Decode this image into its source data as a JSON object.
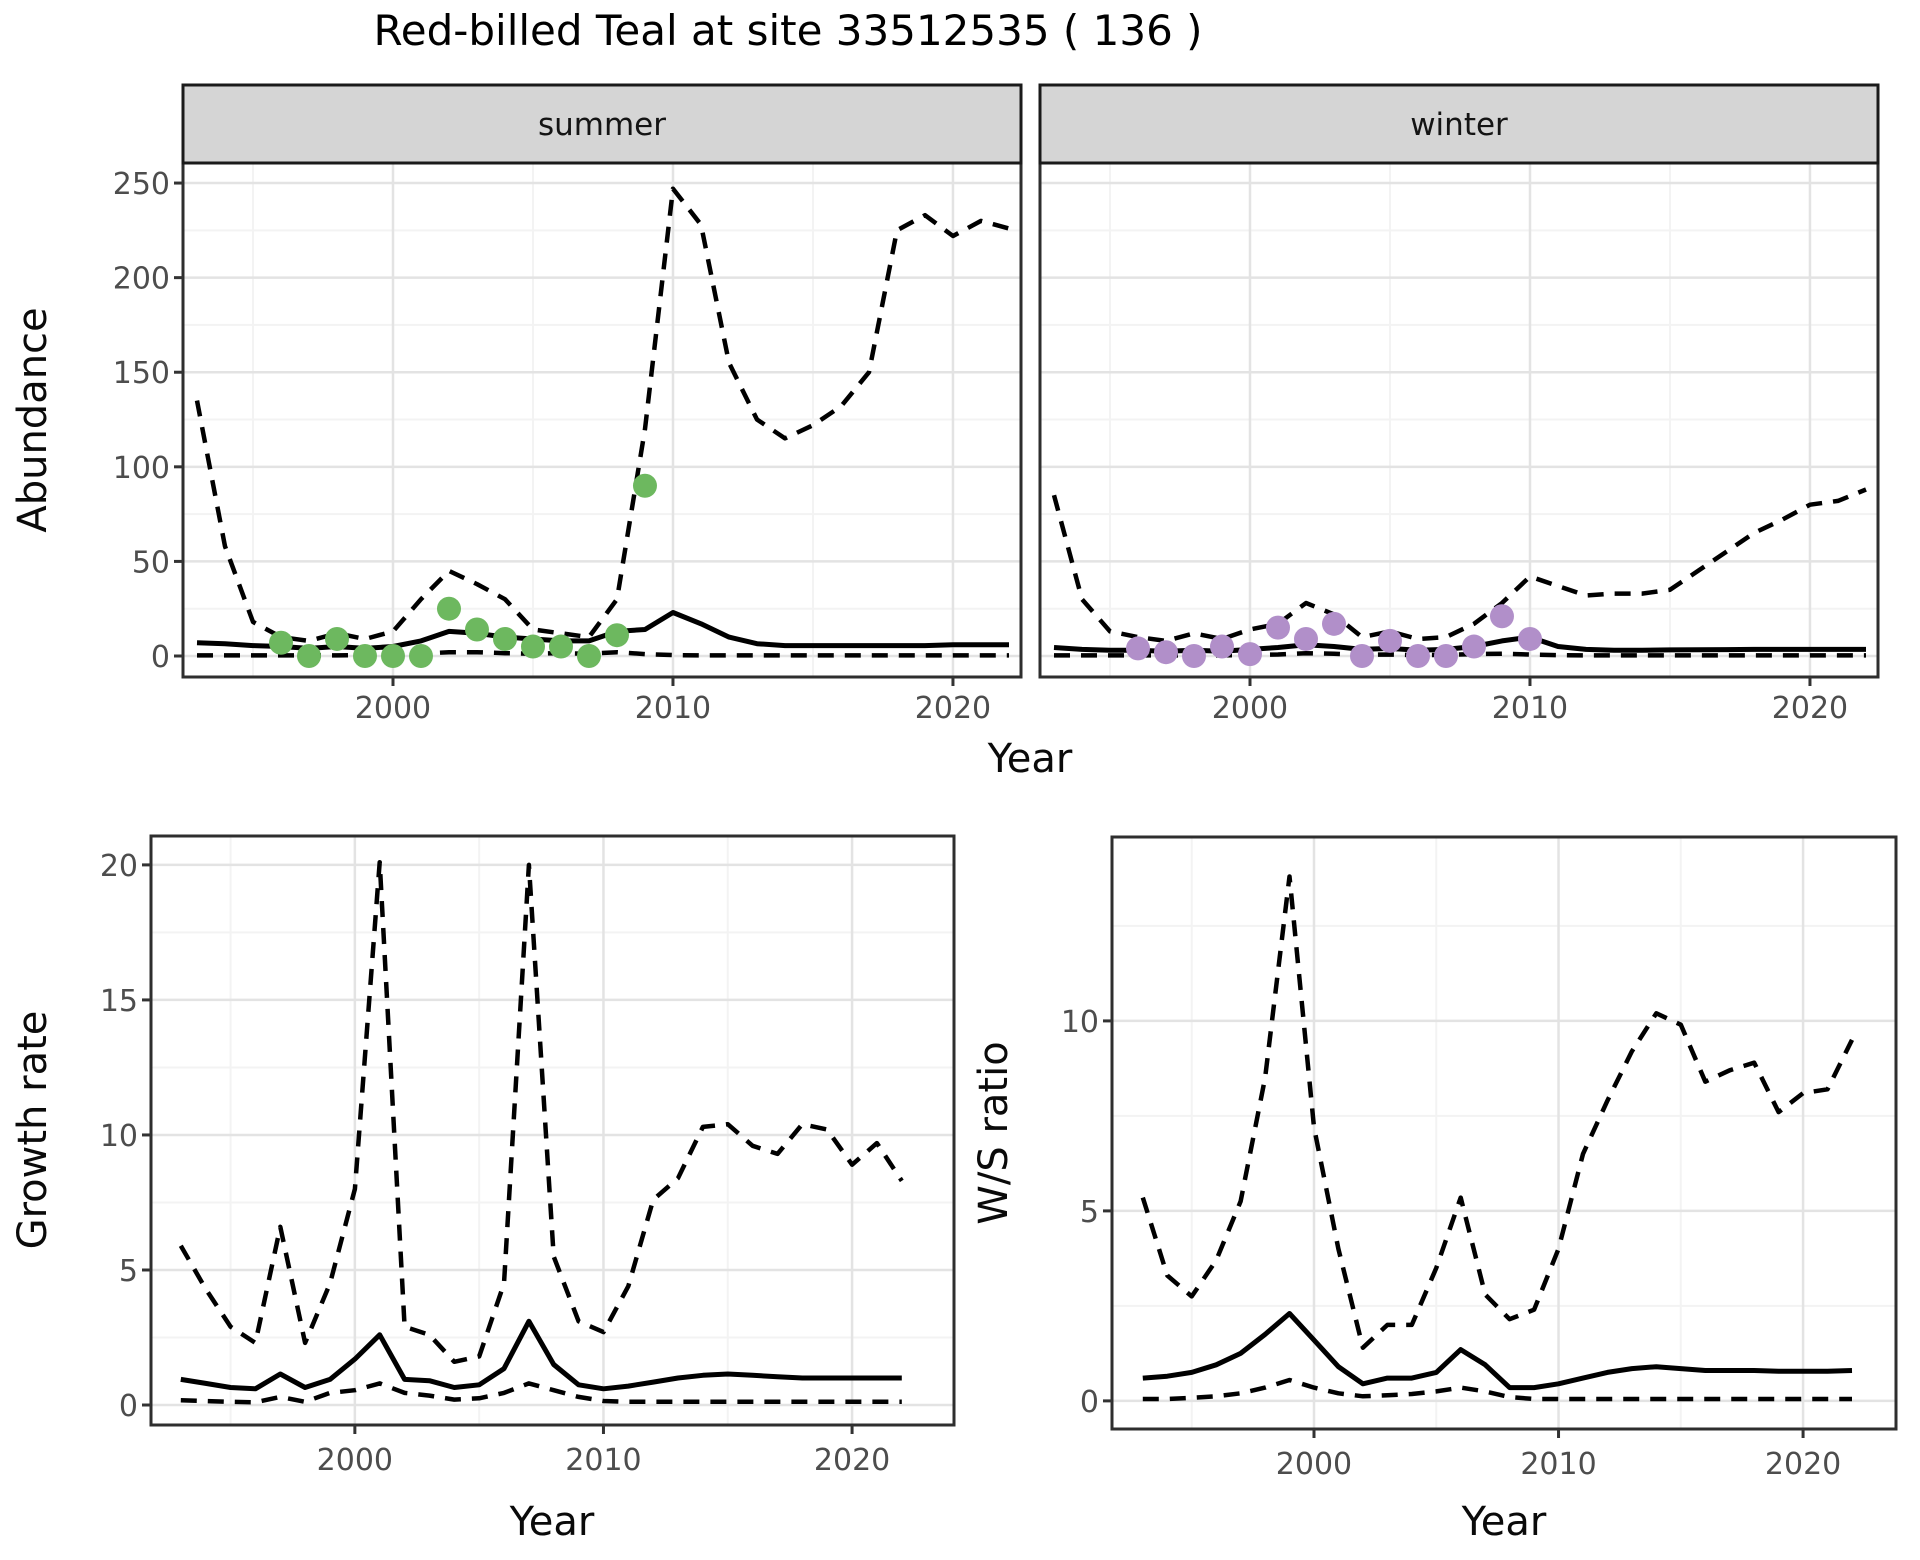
{
  "title": "Red-billed Teal at site 33512535 ( 136 )",
  "facets": [
    "summer",
    "winter"
  ],
  "colors": {
    "summer_points": "#6db85f",
    "winter_points": "#b18fc9",
    "line": "#000000",
    "grid_major": "#e3e3e3",
    "grid_minor": "#f3f3f3",
    "strip_fill": "#d5d5d5",
    "strip_border": "#1a1a1a",
    "panel_border": "#2e2e2e",
    "tick_text": "#4d4d4d",
    "axis_text": "#0a0a0a"
  },
  "chart_data": [
    {
      "type": "line",
      "facet": "summer",
      "strip_label": "summer",
      "xlabel": "Year",
      "ylabel": "Abundance",
      "xlim": [
        1992.5,
        2022.43
      ],
      "ylim": [
        -11.1,
        260.6
      ],
      "xticks": [
        2000,
        2010,
        2020
      ],
      "yticks": [
        0,
        50,
        100,
        150,
        200,
        250
      ],
      "x_minor": [
        1995,
        2005,
        2015
      ],
      "y_minor": [
        25,
        75,
        125,
        175,
        225
      ],
      "x": [
        1993,
        1994,
        1995,
        1996,
        1997,
        1998,
        1999,
        2000,
        2001,
        2002,
        2003,
        2004,
        2005,
        2006,
        2007,
        2008,
        2009,
        2010,
        2011,
        2012,
        2013,
        2014,
        2015,
        2016,
        2017,
        2018,
        2019,
        2020,
        2021,
        2022
      ],
      "series": [
        {
          "name": "upper_ci",
          "style": "dashed",
          "values": [
            135,
            58,
            18,
            10,
            8,
            12,
            9,
            13,
            30,
            45,
            38,
            30,
            14,
            12,
            10,
            30,
            120,
            247,
            228,
            155,
            125,
            115,
            122,
            132,
            150,
            225,
            233,
            222,
            230,
            226
          ]
        },
        {
          "name": "estimate",
          "style": "solid",
          "values": [
            7,
            6.5,
            5.5,
            5,
            4,
            5,
            4,
            5,
            8,
            13,
            12,
            10,
            9,
            8,
            8,
            13,
            14,
            23,
            17,
            10,
            6.5,
            5.5,
            5.5,
            5.5,
            5.5,
            5.5,
            5.5,
            6,
            6,
            6
          ]
        },
        {
          "name": "lower_ci",
          "style": "dashed",
          "values": [
            0.3,
            0.3,
            0.3,
            0.3,
            0.3,
            0.3,
            0.5,
            0.8,
            1.2,
            2,
            2,
            1.5,
            1.2,
            1.5,
            1.2,
            2,
            1,
            0.5,
            0.3,
            0.3,
            0.3,
            0.3,
            0.3,
            0.3,
            0.3,
            0.3,
            0.3,
            0.3,
            0.3,
            0.3
          ]
        }
      ],
      "points": {
        "name": "observed_counts",
        "color": "#6db85f",
        "x": [
          1996,
          1997,
          1998,
          1999,
          2000,
          2001,
          2002,
          2003,
          2004,
          2005,
          2006,
          2007,
          2008,
          2009
        ],
        "y": [
          7,
          0,
          9,
          0,
          0,
          0,
          25,
          14,
          9,
          5,
          5,
          0,
          11,
          90
        ]
      }
    },
    {
      "type": "line",
      "facet": "winter",
      "strip_label": "winter",
      "xlabel": "Year",
      "ylabel": "Abundance",
      "xlim": [
        1992.5,
        2022.43
      ],
      "ylim": [
        -11.1,
        260.6
      ],
      "xticks": [
        2000,
        2010,
        2020
      ],
      "yticks": [
        0,
        50,
        100,
        150,
        200,
        250
      ],
      "x_minor": [
        1995,
        2005,
        2015
      ],
      "y_minor": [
        25,
        75,
        125,
        175,
        225
      ],
      "x": [
        1993,
        1994,
        1995,
        1996,
        1997,
        1998,
        1999,
        2000,
        2001,
        2002,
        2003,
        2004,
        2005,
        2006,
        2007,
        2008,
        2009,
        2010,
        2011,
        2012,
        2013,
        2014,
        2015,
        2016,
        2017,
        2018,
        2019,
        2020,
        2021,
        2022
      ],
      "series": [
        {
          "name": "upper_ci",
          "style": "dashed",
          "values": [
            85,
            30,
            13,
            10,
            8,
            12,
            9,
            14,
            17,
            28,
            22,
            10,
            13,
            9,
            10,
            17,
            28,
            42,
            37,
            32,
            33,
            33,
            35,
            45,
            55,
            65,
            72,
            80,
            82,
            88
          ]
        },
        {
          "name": "estimate",
          "style": "solid",
          "values": [
            4.5,
            3.5,
            3,
            3,
            2.5,
            3,
            2.5,
            3.5,
            4.5,
            6,
            5,
            3.5,
            4,
            3,
            3.5,
            5,
            8,
            10,
            5,
            3.5,
            3,
            3,
            3.2,
            3.3,
            3.4,
            3.5,
            3.5,
            3.5,
            3.5,
            3.5
          ]
        },
        {
          "name": "lower_ci",
          "style": "dashed",
          "values": [
            0.3,
            0.3,
            0.3,
            0.3,
            0.3,
            0.3,
            0.3,
            0.5,
            0.8,
            1.5,
            1.2,
            0.6,
            0.8,
            0.5,
            0.6,
            1,
            1.2,
            0.8,
            0.4,
            0.3,
            0.3,
            0.3,
            0.3,
            0.3,
            0.3,
            0.3,
            0.3,
            0.3,
            0.3,
            0.3
          ]
        }
      ],
      "points": {
        "name": "observed_counts",
        "color": "#b18fc9",
        "x": [
          1996,
          1997,
          1998,
          1999,
          2000,
          2001,
          2002,
          2003,
          2004,
          2005,
          2006,
          2007,
          2008,
          2009,
          2010
        ],
        "y": [
          4,
          2,
          0,
          5,
          1,
          15,
          9,
          17,
          0,
          8,
          0,
          0,
          5,
          21,
          9
        ]
      }
    },
    {
      "type": "line",
      "facet": null,
      "strip_label": null,
      "xlabel": "Year",
      "ylabel": "Growth rate",
      "xlim": [
        1991.8,
        2024.1
      ],
      "ylim": [
        -0.74,
        21.07
      ],
      "xticks": [
        2000,
        2010,
        2020
      ],
      "yticks": [
        0,
        5,
        10,
        15,
        20
      ],
      "x_minor": [
        1995,
        2005,
        2015
      ],
      "y_minor": [
        2.5,
        7.5,
        12.5,
        17.5
      ],
      "x": [
        1993,
        1994,
        1995,
        1996,
        1997,
        1998,
        1999,
        2000,
        2001,
        2002,
        2003,
        2004,
        2005,
        2006,
        2007,
        2008,
        2009,
        2010,
        2011,
        2012,
        2013,
        2014,
        2015,
        2016,
        2017,
        2018,
        2019,
        2020,
        2021,
        2022
      ],
      "series": [
        {
          "name": "upper_ci",
          "style": "dashed",
          "values": [
            5.9,
            4.3,
            2.9,
            2.3,
            6.6,
            2.3,
            4.5,
            8,
            20.1,
            2.9,
            2.6,
            1.6,
            1.8,
            4.5,
            20,
            5.5,
            3.1,
            2.7,
            4.4,
            7.6,
            8.4,
            10.3,
            10.4,
            9.6,
            9.3,
            10.4,
            10.2,
            8.9,
            9.7,
            8.3
          ]
        },
        {
          "name": "estimate",
          "style": "solid",
          "values": [
            0.95,
            0.8,
            0.65,
            0.6,
            1.15,
            0.65,
            0.95,
            1.7,
            2.6,
            0.95,
            0.9,
            0.65,
            0.75,
            1.35,
            3.1,
            1.5,
            0.75,
            0.6,
            0.7,
            0.85,
            1,
            1.1,
            1.15,
            1.1,
            1.05,
            1,
            1,
            1,
            1,
            1
          ]
        },
        {
          "name": "lower_ci",
          "style": "dashed",
          "values": [
            0.18,
            0.15,
            0.12,
            0.1,
            0.3,
            0.12,
            0.45,
            0.55,
            0.8,
            0.45,
            0.35,
            0.2,
            0.25,
            0.45,
            0.8,
            0.55,
            0.3,
            0.15,
            0.12,
            0.12,
            0.12,
            0.12,
            0.12,
            0.12,
            0.12,
            0.12,
            0.12,
            0.12,
            0.12,
            0.12
          ]
        }
      ],
      "points": null
    },
    {
      "type": "line",
      "facet": null,
      "strip_label": null,
      "xlabel": "Year",
      "ylabel": "W/S ratio",
      "xlim": [
        1991.74,
        2023.8
      ],
      "ylim": [
        -0.74,
        14.84
      ],
      "xticks": [
        2000,
        2010,
        2020
      ],
      "yticks": [
        0,
        5,
        10
      ],
      "x_minor": [
        1995,
        2005,
        2015
      ],
      "y_minor": [
        2.5,
        7.5,
        12.5
      ],
      "x": [
        1993,
        1994,
        1995,
        1996,
        1997,
        1998,
        1999,
        2000,
        2001,
        2002,
        2003,
        2004,
        2005,
        2006,
        2007,
        2008,
        2009,
        2010,
        2011,
        2012,
        2013,
        2014,
        2015,
        2016,
        2017,
        2018,
        2019,
        2020,
        2021,
        2022
      ],
      "series": [
        {
          "name": "upper_ci",
          "style": "dashed",
          "values": [
            5.35,
            3.3,
            2.75,
            3.7,
            5.25,
            8.5,
            13.8,
            7.2,
            4,
            1.4,
            2,
            2,
            3.5,
            5.35,
            2.8,
            2.15,
            2.4,
            4,
            6.5,
            7.9,
            9.2,
            10.2,
            9.9,
            8.4,
            8.7,
            8.9,
            7.6,
            8.1,
            8.2,
            9.5
          ]
        },
        {
          "name": "estimate",
          "style": "solid",
          "values": [
            0.6,
            0.65,
            0.75,
            0.95,
            1.25,
            1.75,
            2.3,
            1.6,
            0.9,
            0.45,
            0.6,
            0.6,
            0.75,
            1.35,
            0.95,
            0.35,
            0.35,
            0.45,
            0.6,
            0.75,
            0.85,
            0.9,
            0.85,
            0.8,
            0.8,
            0.8,
            0.78,
            0.78,
            0.78,
            0.8
          ]
        },
        {
          "name": "lower_ci",
          "style": "dashed",
          "values": [
            0.05,
            0.05,
            0.08,
            0.12,
            0.2,
            0.35,
            0.55,
            0.35,
            0.2,
            0.12,
            0.15,
            0.18,
            0.25,
            0.35,
            0.25,
            0.1,
            0.05,
            0.05,
            0.05,
            0.05,
            0.05,
            0.05,
            0.05,
            0.05,
            0.05,
            0.05,
            0.05,
            0.05,
            0.05,
            0.05
          ]
        }
      ],
      "points": null
    }
  ]
}
